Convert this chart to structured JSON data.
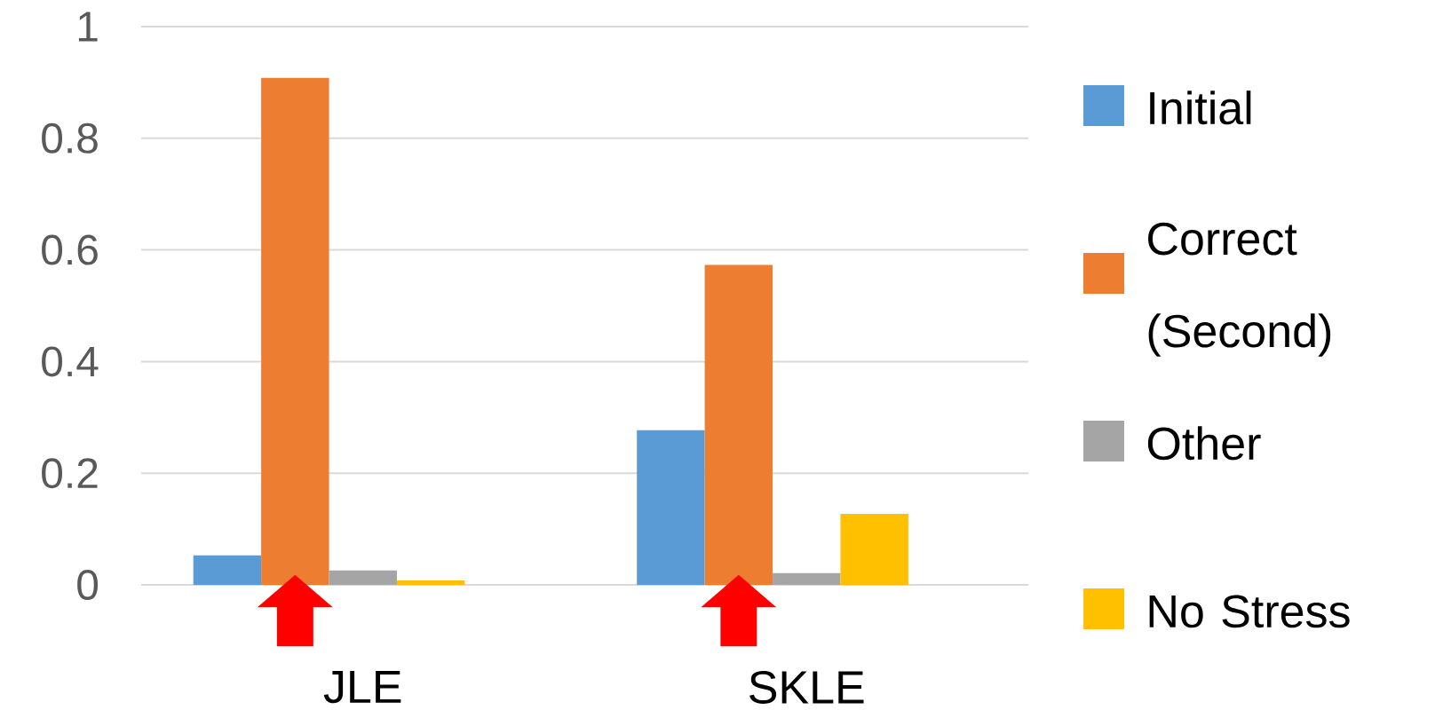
{
  "chart_data": {
    "type": "bar",
    "categories": [
      "JLE",
      "SKLE"
    ],
    "series": [
      {
        "name": "Initial",
        "color": "#5b9bd5",
        "values": [
          0.053,
          0.277
        ]
      },
      {
        "name": "Correct (Second)",
        "color": "#ed7d31",
        "values": [
          0.908,
          0.573
        ]
      },
      {
        "name": "Other",
        "color": "#a5a5a5",
        "values": [
          0.026,
          0.021
        ]
      },
      {
        "name": "No Stress",
        "color": "#ffc000",
        "values": [
          0.008,
          0.127
        ]
      }
    ],
    "ylim": [
      0,
      1
    ],
    "yticks": [
      0,
      0.2,
      0.4,
      0.6,
      0.8,
      1
    ],
    "grid": "y",
    "legend": "right"
  }
}
